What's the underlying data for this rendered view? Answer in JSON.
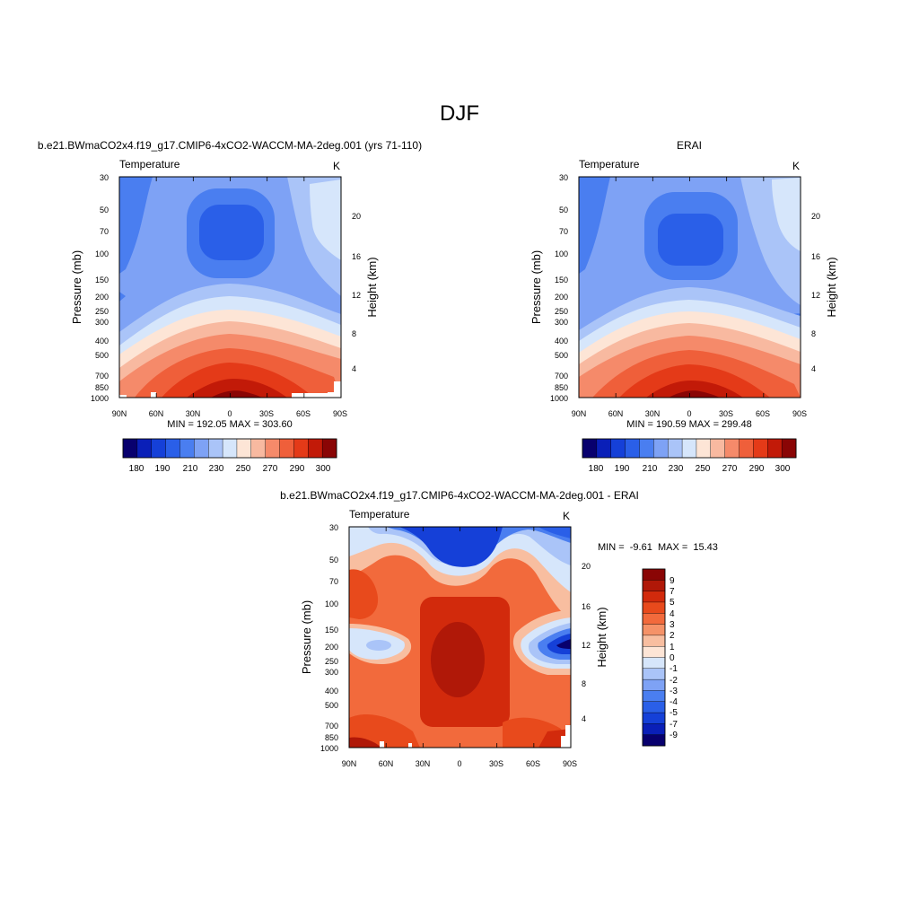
{
  "figure": {
    "title": "DJF"
  },
  "chart_data": [
    {
      "type": "heatmap",
      "panel": "model",
      "title": "b.e21.BWmaCO2x4.f19_g17.CMIP6-4xCO2-WACCM-MA-2deg.001 (yrs 71-110)",
      "left_label": "Temperature",
      "units": "K",
      "ylabel": "Pressure (mb)",
      "ylabel_right": "Height (km)",
      "x_ticks": [
        "90N",
        "60N",
        "30N",
        "0",
        "30S",
        "60S",
        "90S"
      ],
      "y_ticks": [
        "30",
        "50",
        "70",
        "100",
        "150",
        "200",
        "250",
        "300",
        "400",
        "500",
        "700",
        "850",
        "1000"
      ],
      "y_right_ticks": [
        "20",
        "16",
        "12",
        "8",
        "4"
      ],
      "stats": "MIN = 192.05  MAX = 303.60",
      "min": 192.05,
      "max": 303.6,
      "colorbar_levels": [
        180,
        190,
        200,
        210,
        220,
        230,
        240,
        250,
        260,
        270,
        280,
        290,
        300
      ],
      "colorbar_labels": [
        "180",
        "190",
        "210",
        "230",
        "250",
        "270",
        "290",
        "300"
      ]
    },
    {
      "type": "heatmap",
      "panel": "obs",
      "title": "ERAI",
      "left_label": "Temperature",
      "units": "K",
      "ylabel": "Pressure (mb)",
      "ylabel_right": "Height (km)",
      "x_ticks": [
        "90N",
        "60N",
        "30N",
        "0",
        "30S",
        "60S",
        "90S"
      ],
      "y_ticks": [
        "30",
        "50",
        "70",
        "100",
        "150",
        "200",
        "250",
        "300",
        "400",
        "500",
        "700",
        "850",
        "1000"
      ],
      "y_right_ticks": [
        "20",
        "16",
        "12",
        "8",
        "4"
      ],
      "stats": "MIN = 190.59  MAX = 299.48",
      "min": 190.59,
      "max": 299.48,
      "colorbar_levels": [
        180,
        190,
        200,
        210,
        220,
        230,
        240,
        250,
        260,
        270,
        280,
        290,
        300
      ],
      "colorbar_labels": [
        "180",
        "190",
        "210",
        "230",
        "250",
        "270",
        "290",
        "300"
      ]
    },
    {
      "type": "heatmap",
      "panel": "difference",
      "title": "b.e21.BWmaCO2x4.f19_g17.CMIP6-4xCO2-WACCM-MA-2deg.001 - ERAI",
      "left_label": "Temperature",
      "units": "K",
      "ylabel": "Pressure (mb)",
      "ylabel_right": "Height (km)",
      "x_ticks": [
        "90N",
        "60N",
        "30N",
        "0",
        "30S",
        "60S",
        "90S"
      ],
      "y_ticks": [
        "30",
        "50",
        "70",
        "100",
        "150",
        "200",
        "250",
        "300",
        "400",
        "500",
        "700",
        "850",
        "1000"
      ],
      "y_right_ticks": [
        "20",
        "16",
        "12",
        "8",
        "4"
      ],
      "stats": "MIN =  -9.61  MAX =  15.43",
      "min": -9.61,
      "max": 15.43,
      "colorbar_levels": [
        9,
        7,
        5,
        4,
        3,
        2,
        1,
        0,
        -1,
        -2,
        -3,
        -4,
        -5,
        -7,
        -9
      ],
      "colorbar_labels": [
        "9",
        "7",
        "5",
        "4",
        "3",
        "2",
        "1",
        "0",
        "-1",
        "-2",
        "-3",
        "-4",
        "-5",
        "-7",
        "-9"
      ]
    }
  ],
  "colors": {
    "temperature_palette": [
      "#08006e",
      "#0a1fb8",
      "#1540d8",
      "#2a5fe8",
      "#4a7ef0",
      "#7ea2f5",
      "#aac4f8",
      "#d6e6fb",
      "#fde5d6",
      "#f8b9a0",
      "#f58a6a",
      "#ef5f3a",
      "#e43a18",
      "#c21a08",
      "#8a0505"
    ],
    "difference_palette": [
      "#8a0505",
      "#b01808",
      "#d22a0c",
      "#e84a1c",
      "#f26a3c",
      "#f59268",
      "#f8bea0",
      "#fde5d6",
      "#d6e6fb",
      "#aac4f8",
      "#7ea2f5",
      "#4a7ef0",
      "#2a5fe8",
      "#1540d8",
      "#0a1fb8",
      "#08006e"
    ]
  }
}
